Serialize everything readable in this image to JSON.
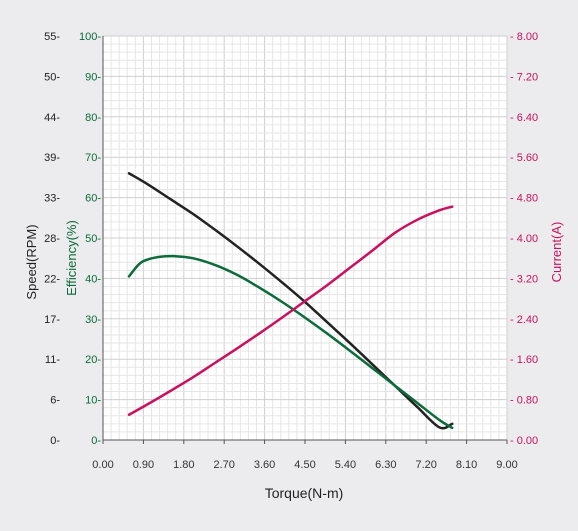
{
  "chart_data": {
    "type": "line",
    "xlabel": "Torque(N-m)",
    "x_ticks": [
      "0.00",
      "0.90",
      "1.80",
      "2.70",
      "3.60",
      "4.50",
      "5.40",
      "6.30",
      "7.20",
      "8.10",
      "9.00"
    ],
    "xlim": [
      0,
      9
    ],
    "axes": {
      "speed": {
        "label": "Speed(RPM)",
        "color": "#222222",
        "ylim": [
          0,
          55
        ],
        "ticks": [
          "0",
          "6",
          "11",
          "17",
          "22",
          "28",
          "33",
          "39",
          "44",
          "50",
          "55"
        ]
      },
      "efficiency": {
        "label": "Efficiency(%)",
        "color": "#0b6b3a",
        "ylim": [
          0,
          100
        ],
        "ticks": [
          "0",
          "10",
          "20",
          "30",
          "40",
          "50",
          "60",
          "70",
          "80",
          "90",
          "100"
        ]
      },
      "current": {
        "label": "Current(A)",
        "color": "#c8125f",
        "ylim": [
          0,
          8
        ],
        "ticks": [
          "0.00",
          "0.80",
          "1.60",
          "2.40",
          "3.20",
          "4.00",
          "4.80",
          "5.60",
          "6.40",
          "7.20",
          "8.00"
        ]
      }
    },
    "series": [
      {
        "axis": "speed",
        "color": "#222222",
        "x": [
          0.58,
          1.0,
          1.5,
          2.0,
          2.5,
          3.0,
          3.5,
          4.0,
          4.5,
          5.0,
          5.5,
          6.0,
          6.5,
          7.0,
          7.5,
          7.78
        ],
        "values": [
          36.3,
          34.8,
          32.8,
          30.8,
          28.6,
          26.3,
          23.9,
          21.4,
          18.8,
          16.0,
          13.2,
          10.3,
          7.4,
          4.5,
          1.7,
          2.2
        ]
      },
      {
        "axis": "efficiency",
        "color": "#0b6b3a",
        "x": [
          0.58,
          0.8,
          1.0,
          1.3,
          1.6,
          2.0,
          2.5,
          3.0,
          3.5,
          4.0,
          4.5,
          5.0,
          5.5,
          6.0,
          6.5,
          7.0,
          7.5,
          7.78
        ],
        "values": [
          40.5,
          43.5,
          44.7,
          45.4,
          45.5,
          45.0,
          43.3,
          40.8,
          37.6,
          34.1,
          30.3,
          26.3,
          22.1,
          17.8,
          13.5,
          9.2,
          4.9,
          3.0
        ]
      },
      {
        "axis": "current",
        "color": "#c8125f",
        "x": [
          0.58,
          1.0,
          1.5,
          2.0,
          2.5,
          3.0,
          3.5,
          4.0,
          4.5,
          5.0,
          5.5,
          6.0,
          6.5,
          7.0,
          7.5,
          7.78
        ],
        "values": [
          0.5,
          0.71,
          0.97,
          1.24,
          1.53,
          1.82,
          2.12,
          2.43,
          2.75,
          3.07,
          3.41,
          3.75,
          4.1,
          4.36,
          4.55,
          4.62
        ]
      }
    ],
    "grid": true
  }
}
